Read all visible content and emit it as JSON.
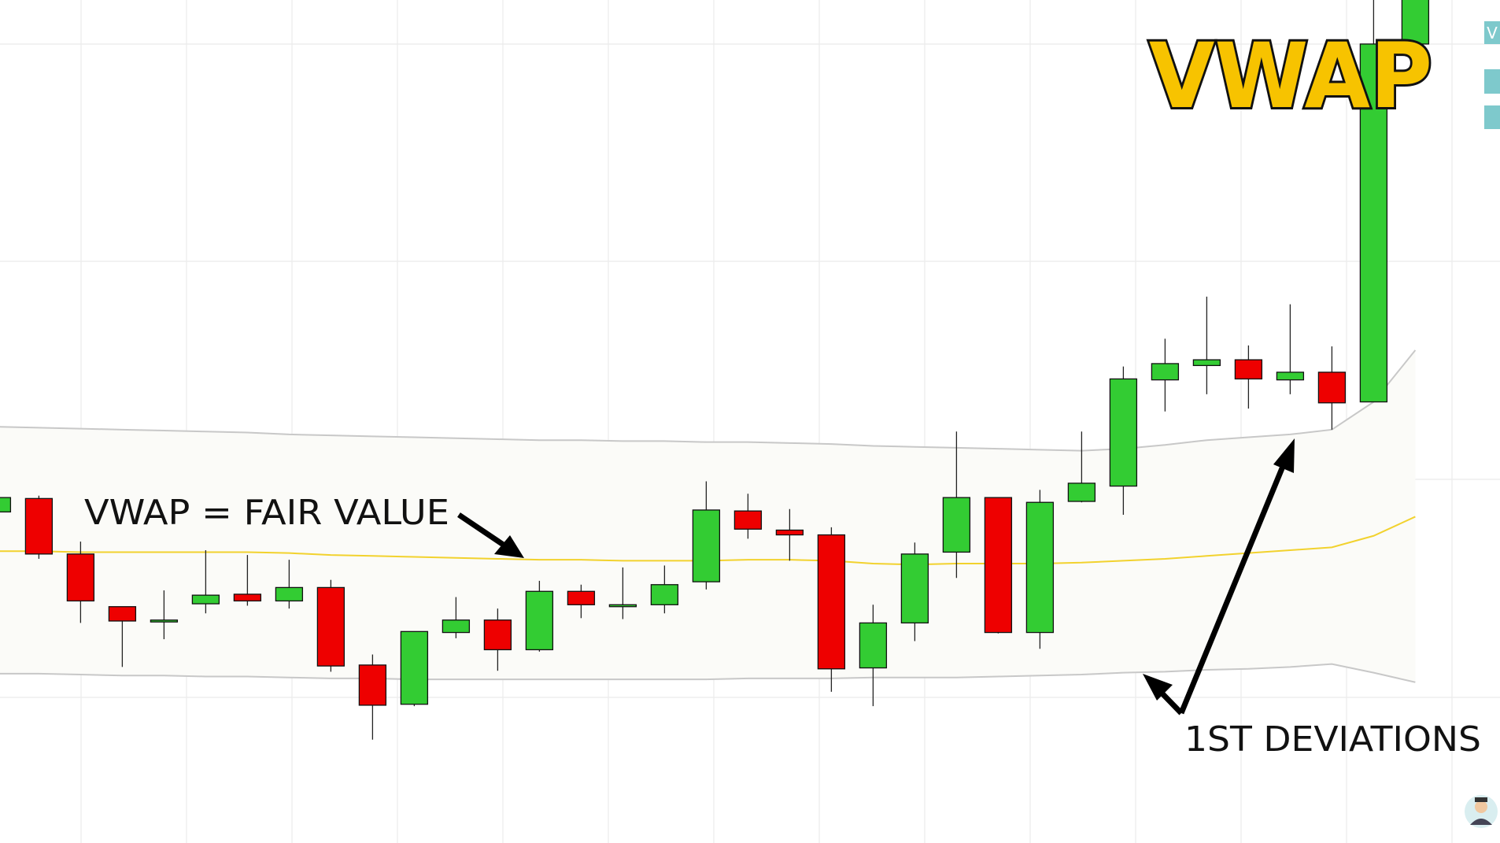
{
  "chart_data": {
    "type": "candlestick",
    "title": "VWAP",
    "side_label": "V",
    "annotations": [
      "VWAP = FAIR VALUE",
      "1ST DEVIATIONS"
    ],
    "categories": [
      null,
      null,
      null,
      null,
      null,
      null,
      null,
      null,
      null,
      null,
      null,
      null,
      null,
      null,
      null,
      null,
      null,
      null,
      null,
      null,
      null,
      null,
      null,
      null,
      null,
      null,
      null,
      null,
      null,
      null,
      null,
      null,
      null,
      null,
      null
    ],
    "open": [
      34.6,
      36.0,
      30.2,
      24.7,
      23.1,
      25.0,
      26.0,
      25.3,
      26.7,
      18.6,
      14.5,
      22.0,
      23.3,
      20.2,
      26.3,
      24.7,
      24.9,
      27.3,
      34.7,
      32.7,
      32.2,
      18.3,
      23.0,
      30.4,
      36.1,
      22.0,
      35.7,
      37.3,
      48.4,
      49.9,
      50.5,
      48.4,
      49.2,
      46.1,
      83.5
    ],
    "high": [
      36.3,
      36.3,
      31.5,
      24.7,
      26.4,
      30.6,
      30.1,
      29.6,
      27.5,
      19.7,
      22.1,
      25.7,
      24.5,
      27.4,
      27.0,
      28.8,
      29.0,
      37.8,
      36.5,
      34.9,
      33.0,
      24.9,
      31.4,
      43.0,
      36.1,
      36.9,
      43.0,
      49.8,
      52.7,
      57.1,
      52.0,
      56.3,
      51.9,
      88.1,
      92.0
    ],
    "low": [
      34.4,
      29.7,
      23.0,
      18.4,
      21.3,
      24.0,
      24.8,
      24.5,
      17.9,
      10.8,
      14.3,
      21.4,
      18.0,
      20.0,
      23.5,
      23.4,
      24.0,
      26.5,
      31.8,
      29.5,
      15.8,
      14.3,
      21.1,
      27.7,
      21.9,
      20.3,
      35.6,
      34.3,
      45.1,
      46.9,
      45.4,
      46.9,
      43.2,
      46.1,
      83.5
    ],
    "close": [
      36.1,
      30.2,
      25.3,
      23.2,
      23.3,
      25.9,
      25.3,
      26.7,
      18.5,
      14.4,
      22.1,
      23.3,
      20.2,
      26.3,
      24.9,
      24.9,
      27.0,
      34.8,
      32.8,
      32.2,
      18.2,
      23.0,
      30.2,
      36.1,
      22.0,
      35.6,
      37.6,
      48.5,
      50.1,
      50.5,
      48.5,
      49.2,
      46.0,
      83.5,
      92.0
    ],
    "up_color": "#33cc33",
    "down_color": "#ee0000",
    "lines": [
      {
        "color": "#c8c8c8",
        "values": [
          43.5,
          43.4,
          43.3,
          43.2,
          43.1,
          43.0,
          42.9,
          42.7,
          42.6,
          42.5,
          42.4,
          42.3,
          42.2,
          42.1,
          42.1,
          42.0,
          42.0,
          41.9,
          41.9,
          41.8,
          41.7,
          41.5,
          41.4,
          41.3,
          41.2,
          41.1,
          41.0,
          41.2,
          41.6,
          42.1,
          42.4,
          42.7,
          43.2,
          46.1,
          51.5
        ]
      },
      {
        "color": "#f2d22e",
        "values": [
          30.5,
          30.5,
          30.4,
          30.4,
          30.4,
          30.4,
          30.4,
          30.3,
          30.1,
          30.0,
          29.9,
          29.8,
          29.7,
          29.6,
          29.6,
          29.5,
          29.5,
          29.5,
          29.6,
          29.6,
          29.5,
          29.2,
          29.1,
          29.2,
          29.2,
          29.2,
          29.3,
          29.5,
          29.7,
          30.0,
          30.3,
          30.6,
          30.9,
          32.1,
          34.1
        ]
      },
      {
        "color": "#c8c8c8",
        "values": [
          17.7,
          17.7,
          17.6,
          17.5,
          17.5,
          17.4,
          17.4,
          17.3,
          17.2,
          17.2,
          17.1,
          17.1,
          17.1,
          17.1,
          17.1,
          17.1,
          17.1,
          17.1,
          17.2,
          17.2,
          17.2,
          17.3,
          17.3,
          17.3,
          17.4,
          17.5,
          17.6,
          17.8,
          17.9,
          18.1,
          18.2,
          18.4,
          18.7,
          17.8,
          16.8
        ]
      }
    ],
    "ylim": [
      0,
      88.1
    ]
  }
}
